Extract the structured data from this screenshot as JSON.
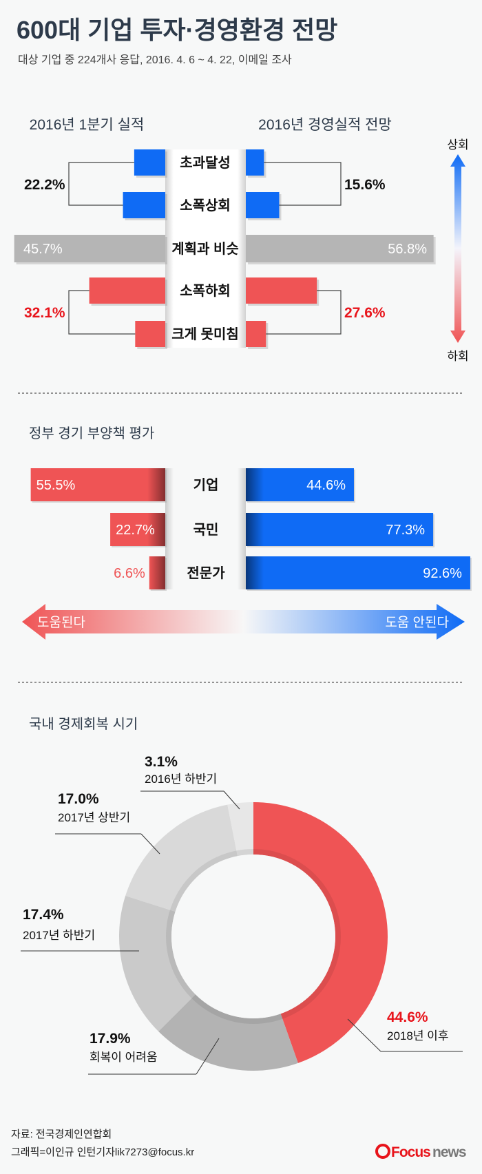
{
  "title": "600대 기업 투자·경영환경 전망",
  "subtitle": "대상 기업 중 224개사 응답, 2016. 4. 6 ~ 4. 22, 이메일 조사",
  "colors": {
    "blue": "#0f6bf5",
    "red": "#ef5455",
    "gray": "#b5b5b5",
    "title": "#2d3a4a",
    "highlight_red": "#e8141b"
  },
  "chart_data": [
    {
      "type": "bar",
      "orientation": "horizontal-mirrored",
      "categories": [
        "초과달성",
        "소폭상회",
        "계획과 비슷",
        "소폭하회",
        "크게 못미침"
      ],
      "series": [
        {
          "name": "2016년 1분기 실적",
          "values": [
            9.4,
            12.8,
            45.7,
            23.0,
            9.1
          ]
        },
        {
          "name": "2016년 경영실적 전망",
          "values": [
            5.5,
            10.1,
            56.8,
            21.5,
            6.1
          ]
        }
      ],
      "group_totals": {
        "left_up": 22.2,
        "left_down": 32.1,
        "right_up": 15.6,
        "right_down": 27.6
      },
      "middle_labels": {
        "left": 45.7,
        "right": 56.8
      },
      "scale_arrow": {
        "top": "상회",
        "bottom": "하회"
      }
    },
    {
      "type": "bar",
      "orientation": "horizontal-diverging",
      "title": "정부 경기 부양책  평가",
      "categories": [
        "기업",
        "국민",
        "전문가"
      ],
      "series": [
        {
          "name": "도움된다",
          "values": [
            55.5,
            22.7,
            6.6
          ]
        },
        {
          "name": "도움 안된다",
          "values": [
            44.6,
            77.3,
            92.6
          ]
        }
      ]
    },
    {
      "type": "pie",
      "style": "donut",
      "title": "국내 경제회복 시기",
      "labels": [
        "2018년 이후",
        "회복이 어려움",
        "2017년 하반기",
        "2017년 상반기",
        "2016년 하반기"
      ],
      "values": [
        44.6,
        17.9,
        17.4,
        17.0,
        3.1
      ],
      "colors": [
        "#ef5455",
        "#b3b3b3",
        "#cacaca",
        "#d9d9d9",
        "#e7e7e7"
      ]
    }
  ],
  "footer": {
    "source": "자료: 전국경제인연합회",
    "credit": "그래픽=이인규 인턴기자lik7273@focus.kr",
    "logo": "Focus news"
  }
}
